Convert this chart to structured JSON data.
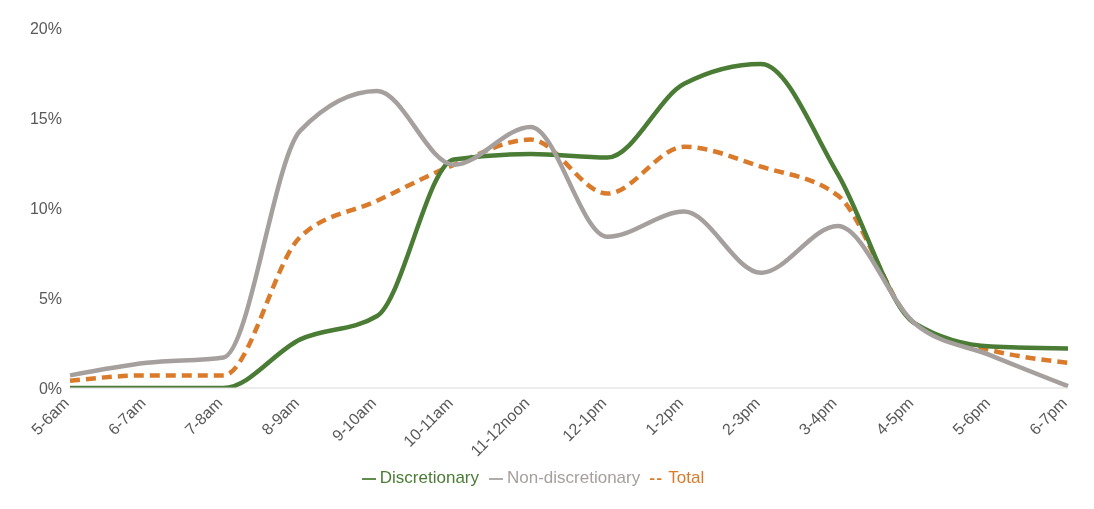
{
  "chart_data": {
    "type": "line",
    "categories": [
      "5-6am",
      "6-7am",
      "7-8am",
      "8-9am",
      "9-10am",
      "10-11am",
      "11-12noon",
      "12-1pm",
      "1-2pm",
      "2-3pm",
      "3-4pm",
      "4-5pm",
      "5-6pm",
      "6-7pm"
    ],
    "ylim": [
      0,
      20
    ],
    "yticks": [
      {
        "value": 0,
        "label": "0%"
      },
      {
        "value": 5,
        "label": "5%"
      },
      {
        "value": 10,
        "label": "10%"
      },
      {
        "value": 15,
        "label": "15%"
      },
      {
        "value": 20,
        "label": "20%"
      }
    ],
    "grid": false,
    "legend": "bottom",
    "marker": "none",
    "series": [
      {
        "name": "Total",
        "color": "#d97b2a",
        "line_style": "dashed",
        "values": [
          0.4,
          0.7,
          0.7,
          8.4,
          10.4,
          12.4,
          13.8,
          10.8,
          13.4,
          12.3,
          10.7,
          3.6,
          2.1,
          1.4
        ]
      },
      {
        "name": "Discretionary",
        "color": "#4a7c35",
        "line_style": "solid",
        "values": [
          0,
          0,
          0,
          2.7,
          4.0,
          12.7,
          13.0,
          12.8,
          16.9,
          18.0,
          11.9,
          3.6,
          2.3,
          2.2
        ]
      },
      {
        "name": "Non-discretionary",
        "color": "#a5a09d",
        "line_style": "solid",
        "values": [
          0.7,
          1.4,
          1.7,
          14.3,
          16.5,
          12.4,
          14.5,
          8.4,
          9.8,
          6.4,
          9.0,
          3.6,
          1.8,
          0.1
        ]
      }
    ]
  }
}
